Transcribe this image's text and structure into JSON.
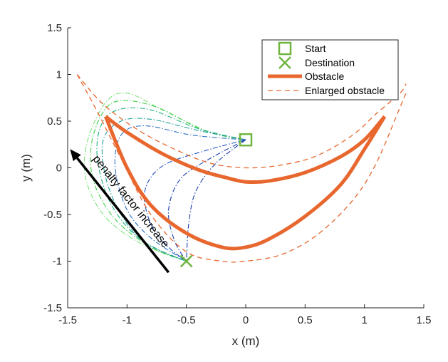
{
  "chart_data": {
    "type": "line",
    "title": "",
    "xlabel": "x (m)",
    "ylabel": "y (m)",
    "xlim": [
      -1.5,
      1.5
    ],
    "ylim": [
      -1.5,
      1.5
    ],
    "xticks": [
      "-1.5",
      "-1",
      "-0.5",
      "0",
      "0.5",
      "1",
      "1.5"
    ],
    "yticks": [
      "-1.5",
      "-1",
      "-0.5",
      "0",
      "0.5",
      "1",
      "1.5"
    ],
    "grid": false,
    "legend_position": "top-right",
    "legend": [
      {
        "label": "Start",
        "marker": "square"
      },
      {
        "label": "Destination",
        "marker": "x"
      },
      {
        "label": "Obstacle",
        "style": "thick-solid"
      },
      {
        "label": "Enlarged obstacle",
        "style": "dashed"
      }
    ],
    "start": {
      "x": 0.0,
      "y": 0.3
    },
    "destination": {
      "x": -0.5,
      "y": -1.0
    },
    "obstacle": {
      "upper": [
        [
          -1.18,
          0.55
        ],
        [
          -1.0,
          0.38
        ],
        [
          -0.7,
          0.15
        ],
        [
          -0.4,
          -0.02
        ],
        [
          -0.15,
          -0.11
        ],
        [
          0.0,
          -0.15
        ],
        [
          0.2,
          -0.14
        ],
        [
          0.5,
          -0.05
        ],
        [
          0.8,
          0.12
        ],
        [
          1.0,
          0.3
        ],
        [
          1.17,
          0.55
        ]
      ],
      "lower": [
        [
          1.17,
          0.55
        ],
        [
          1.0,
          0.2
        ],
        [
          0.8,
          -0.18
        ],
        [
          0.5,
          -0.52
        ],
        [
          0.2,
          -0.76
        ],
        [
          0.0,
          -0.85
        ],
        [
          -0.2,
          -0.85
        ],
        [
          -0.5,
          -0.7
        ],
        [
          -0.8,
          -0.4
        ],
        [
          -1.0,
          0.0
        ],
        [
          -1.18,
          0.55
        ]
      ]
    },
    "enlarged_obstacle": [
      [
        [
          -1.42,
          1.0
        ],
        [
          -1.2,
          0.68
        ],
        [
          -0.9,
          0.4
        ],
        [
          -0.6,
          0.2
        ],
        [
          -0.3,
          0.05
        ],
        [
          0.0,
          0.0
        ],
        [
          0.3,
          0.03
        ],
        [
          0.6,
          0.13
        ],
        [
          0.9,
          0.35
        ],
        [
          1.1,
          0.58
        ],
        [
          1.3,
          0.8
        ],
        [
          1.35,
          0.9
        ]
      ],
      [
        [
          -1.42,
          1.0
        ],
        [
          -1.25,
          0.6
        ],
        [
          -1.05,
          0.1
        ],
        [
          -0.8,
          -0.5
        ],
        [
          -0.5,
          -0.9
        ],
        [
          -0.2,
          -1.0
        ],
        [
          0.0,
          -1.0
        ],
        [
          0.3,
          -0.93
        ],
        [
          0.6,
          -0.72
        ],
        [
          0.9,
          -0.35
        ],
        [
          1.1,
          0.05
        ],
        [
          1.3,
          0.65
        ],
        [
          1.35,
          0.8
        ]
      ]
    ],
    "series": [
      {
        "name": "path-1",
        "color": "#7be27b",
        "points": [
          [
            0.0,
            0.3
          ],
          [
            -0.3,
            0.38
          ],
          [
            -0.7,
            0.62
          ],
          [
            -1.0,
            0.8
          ],
          [
            -1.18,
            0.7
          ],
          [
            -1.33,
            0.3
          ],
          [
            -1.35,
            -0.1
          ],
          [
            -1.2,
            -0.5
          ],
          [
            -0.9,
            -0.8
          ],
          [
            -0.5,
            -1.0
          ]
        ]
      },
      {
        "name": "path-2",
        "color": "#3fcf4a",
        "points": [
          [
            0.0,
            0.3
          ],
          [
            -0.35,
            0.4
          ],
          [
            -0.75,
            0.65
          ],
          [
            -1.05,
            0.72
          ],
          [
            -1.2,
            0.6
          ],
          [
            -1.3,
            0.25
          ],
          [
            -1.28,
            -0.15
          ],
          [
            -1.1,
            -0.55
          ],
          [
            -0.8,
            -0.85
          ],
          [
            -0.5,
            -1.0
          ]
        ]
      },
      {
        "name": "path-3",
        "color": "#21b37f",
        "points": [
          [
            0.0,
            0.3
          ],
          [
            -0.4,
            0.42
          ],
          [
            -0.8,
            0.62
          ],
          [
            -1.08,
            0.62
          ],
          [
            -1.22,
            0.45
          ],
          [
            -1.25,
            0.1
          ],
          [
            -1.15,
            -0.35
          ],
          [
            -0.95,
            -0.7
          ],
          [
            -0.7,
            -0.9
          ],
          [
            -0.5,
            -1.0
          ]
        ]
      },
      {
        "name": "path-4",
        "color": "#1f9e9a",
        "points": [
          [
            0.0,
            0.3
          ],
          [
            -0.4,
            0.4
          ],
          [
            -0.8,
            0.52
          ],
          [
            -1.05,
            0.5
          ],
          [
            -1.2,
            0.3
          ],
          [
            -1.18,
            -0.1
          ],
          [
            -1.05,
            -0.5
          ],
          [
            -0.85,
            -0.8
          ],
          [
            -0.5,
            -1.0
          ]
        ]
      },
      {
        "name": "path-5",
        "color": "#2b72c9",
        "points": [
          [
            0.0,
            0.3
          ],
          [
            -0.45,
            0.35
          ],
          [
            -0.85,
            0.45
          ],
          [
            -1.05,
            0.35
          ],
          [
            -1.1,
            0.0
          ],
          [
            -1.0,
            -0.45
          ],
          [
            -0.8,
            -0.75
          ],
          [
            -0.5,
            -1.0
          ]
        ]
      },
      {
        "name": "path-6",
        "color": "#1e4fc0",
        "points": [
          [
            0.0,
            0.3
          ],
          [
            -0.35,
            0.18
          ],
          [
            -0.7,
            0.02
          ],
          [
            -0.85,
            -0.25
          ],
          [
            -0.8,
            -0.6
          ],
          [
            -0.65,
            -0.85
          ],
          [
            -0.5,
            -1.0
          ]
        ]
      },
      {
        "name": "path-7",
        "color": "#1a3fb0",
        "points": [
          [
            0.0,
            0.3
          ],
          [
            -0.3,
            0.1
          ],
          [
            -0.55,
            -0.12
          ],
          [
            -0.65,
            -0.45
          ],
          [
            -0.6,
            -0.78
          ],
          [
            -0.5,
            -1.0
          ]
        ]
      },
      {
        "name": "path-8",
        "color": "#1c3da8",
        "points": [
          [
            0.0,
            0.3
          ],
          [
            -0.25,
            0.05
          ],
          [
            -0.42,
            -0.25
          ],
          [
            -0.48,
            -0.6
          ],
          [
            -0.5,
            -1.0
          ]
        ]
      }
    ],
    "annotation": {
      "text": "penalty factor increase",
      "arrow_from": [
        -0.65,
        -1.12
      ],
      "arrow_to": [
        -1.48,
        0.2
      ]
    }
  }
}
